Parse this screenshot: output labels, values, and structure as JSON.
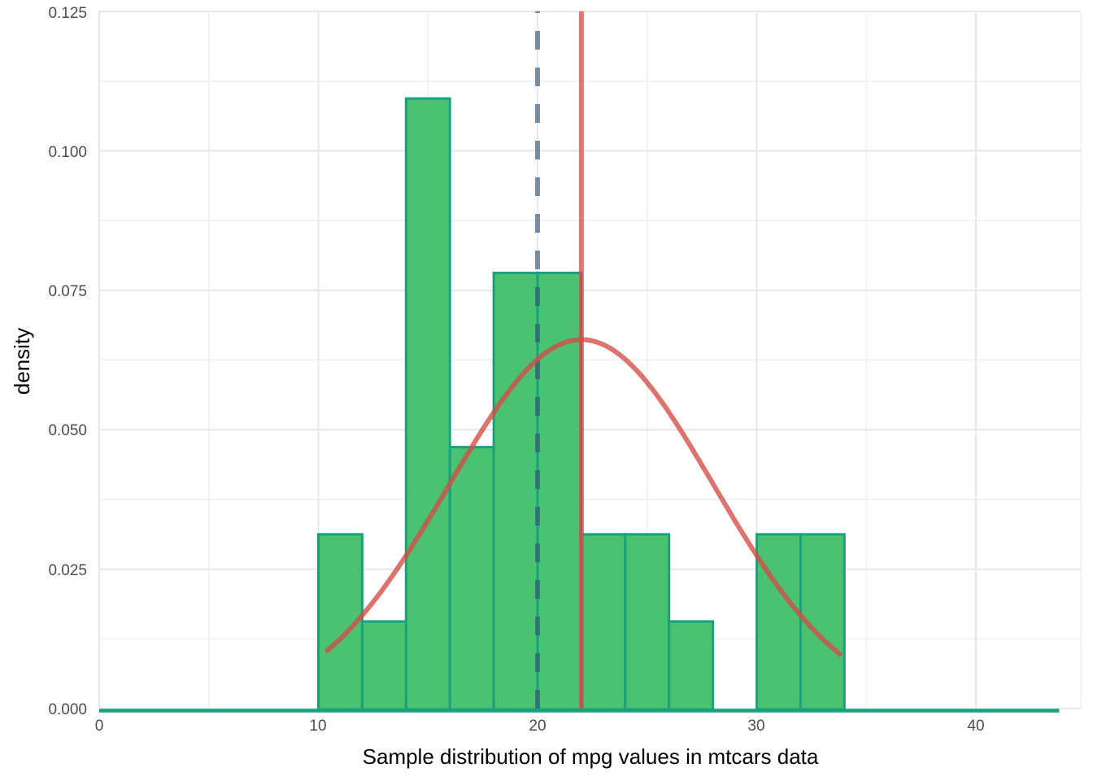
{
  "chart_data": {
    "type": "bar",
    "subtype": "histogram-with-normal-density-overlay",
    "title": "",
    "xlabel": "Sample distribution of mpg values in mtcars data",
    "ylabel": "density",
    "x_tick_labels": [
      "0",
      "10",
      "20",
      "30",
      "40"
    ],
    "x_tick_values": [
      0,
      10,
      20,
      30,
      40
    ],
    "y_tick_labels": [
      "0.000",
      "0.025",
      "0.050",
      "0.075",
      "0.100",
      "0.125"
    ],
    "y_tick_values": [
      0,
      0.025,
      0.05,
      0.075,
      0.1,
      0.125
    ],
    "xlim": [
      0,
      44.8
    ],
    "ylim": [
      0,
      0.125
    ],
    "grid": "major+minor, light gray on white",
    "legend": "none",
    "bins": [
      {
        "from": 10,
        "to": 12,
        "density": 0.03125
      },
      {
        "from": 12,
        "to": 14,
        "density": 0.015625
      },
      {
        "from": 14,
        "to": 16,
        "density": 0.109375
      },
      {
        "from": 16,
        "to": 18,
        "density": 0.046875
      },
      {
        "from": 18,
        "to": 20,
        "density": 0.078125
      },
      {
        "from": 20,
        "to": 22,
        "density": 0.078125
      },
      {
        "from": 22,
        "to": 24,
        "density": 0.03125
      },
      {
        "from": 24,
        "to": 26,
        "density": 0.03125
      },
      {
        "from": 26,
        "to": 28,
        "density": 0.015625
      },
      {
        "from": 28,
        "to": 30,
        "density": 0
      },
      {
        "from": 30,
        "to": 32,
        "density": 0.03125
      },
      {
        "from": 32,
        "to": 34,
        "density": 0.03125
      }
    ],
    "normal_curve": {
      "mean": 22,
      "sd": 6.03,
      "x_from": 10.4,
      "x_to": 33.9,
      "peak_density": 0.066
    },
    "vline_dashed_x": 20,
    "vline_solid_x": 22,
    "baseline_x_from": 0,
    "baseline_x_to": 43.8,
    "colors": {
      "bar_fill": "#4BC271",
      "bar_border": "#18A27C",
      "baseline": "#18A07B",
      "curve": "rgba(211,75,70,0.78)",
      "vline_solid": "rgba(211,75,70,0.75)",
      "vline_dashed": "rgba(55,85,125,0.66)",
      "grid_major": "#E8E8E8",
      "grid_minor": "#F1F1F1",
      "tick_label": "#4D4D4D",
      "axis_title": "#000000",
      "background": "#FFFFFF"
    }
  }
}
